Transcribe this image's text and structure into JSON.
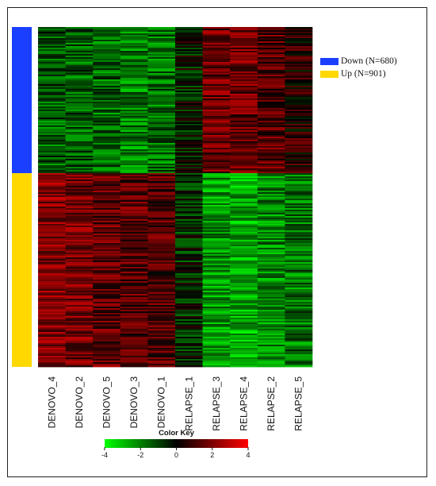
{
  "chart_data": {
    "type": "heatmap",
    "columns": [
      "DENOVO_4",
      "DENOVO_2",
      "DENOVO_5",
      "DENOVO_3",
      "DENOVO_1",
      "RELAPSE_1",
      "RELAPSE_3",
      "RELAPSE_4",
      "RELAPSE_2",
      "RELAPSE_5"
    ],
    "row_groups": [
      {
        "label": "Down (N=680)",
        "count": 680,
        "color": "#1a3fff",
        "column_mean_values": [
          -1.4,
          -1.5,
          -1.6,
          -2.0,
          -1.7,
          -0.3,
          1.6,
          1.7,
          1.4,
          0.6
        ]
      },
      {
        "label": "Up (N=901)",
        "count": 901,
        "color": "#ffd800",
        "column_mean_values": [
          2.0,
          1.8,
          1.5,
          1.3,
          1.2,
          -0.6,
          -2.3,
          -2.6,
          -2.1,
          -1.8
        ]
      }
    ],
    "color_key": {
      "title": "Color Key",
      "ticks": [
        -4,
        -2,
        0,
        2,
        4
      ],
      "range": [
        -4,
        4
      ],
      "low_color": "#00ff00",
      "mid_color": "#000000",
      "high_color": "#ff0000"
    }
  }
}
